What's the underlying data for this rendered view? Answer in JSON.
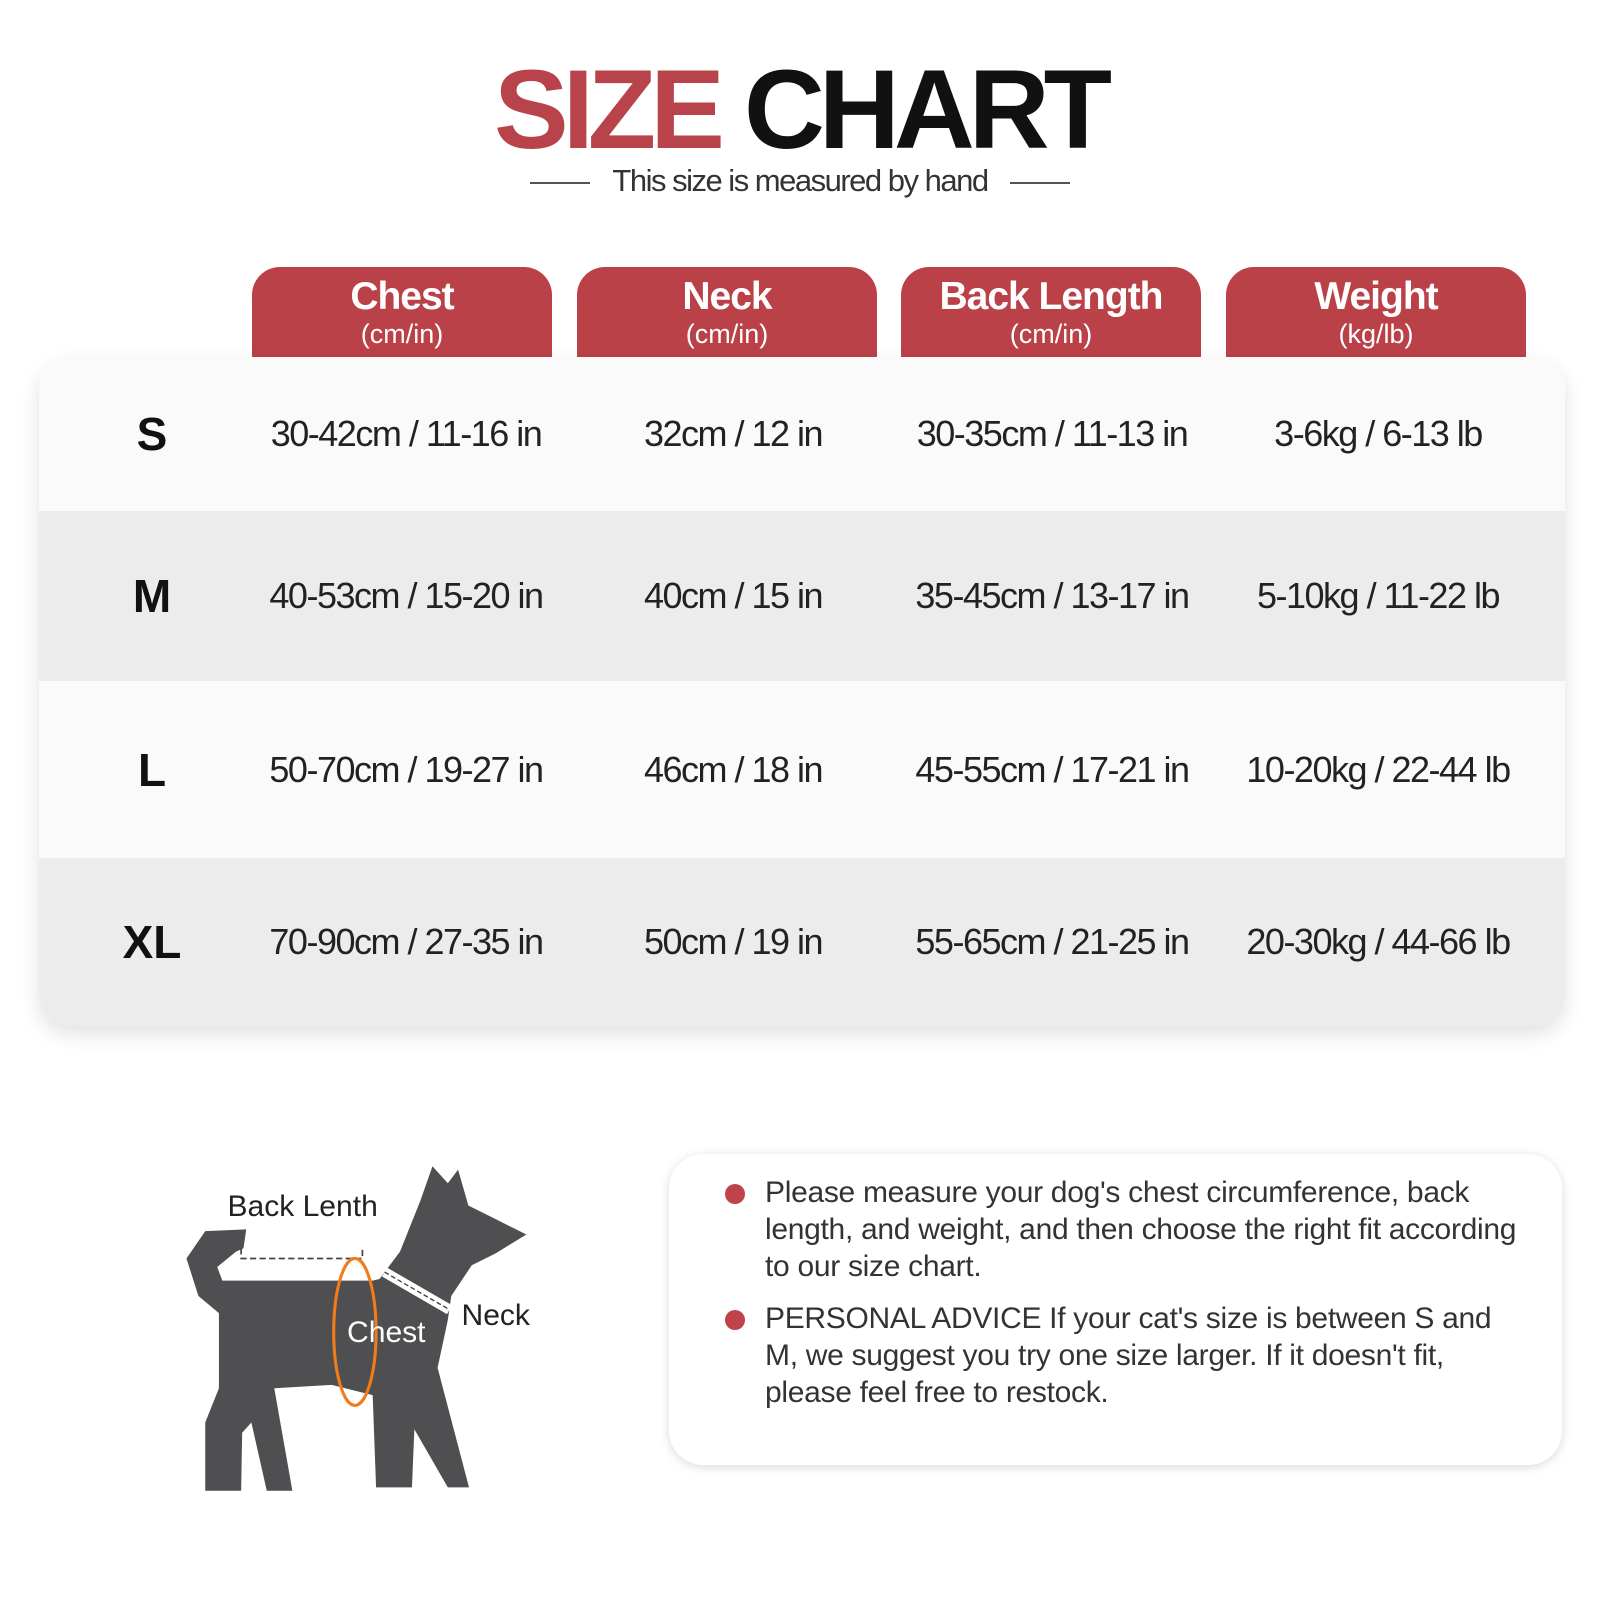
{
  "title": {
    "word1": "SIZE",
    "word2": "CHART",
    "subtitle": "This size is measured by hand"
  },
  "colors": {
    "accent": "#bb4148",
    "row_light": "#fafafa",
    "row_dark": "#ececec",
    "chest_ring": "#f07c1c",
    "dog": "#4f4f51"
  },
  "columns": [
    {
      "label": "Chest",
      "unit": "(cm/in)"
    },
    {
      "label": "Neck",
      "unit": "(cm/in)"
    },
    {
      "label": "Back Length",
      "unit": "(cm/in)"
    },
    {
      "label": "Weight",
      "unit": "(kg/lb)"
    }
  ],
  "rows": [
    {
      "size": "S",
      "chest": "30-42cm / 11-16 in",
      "neck": "32cm / 12 in",
      "back": "30-35cm / 11-13 in",
      "weight": "3-6kg / 6-13 lb"
    },
    {
      "size": "M",
      "chest": "40-53cm / 15-20 in",
      "neck": "40cm / 15 in",
      "back": "35-45cm / 13-17 in",
      "weight": "5-10kg / 11-22 lb"
    },
    {
      "size": "L",
      "chest": "50-70cm / 19-27 in",
      "neck": "46cm / 18 in",
      "back": "45-55cm / 17-21 in",
      "weight": "10-20kg / 22-44 lb"
    },
    {
      "size": "XL",
      "chest": "70-90cm / 27-35 in",
      "neck": "50cm / 19 in",
      "back": "55-65cm / 21-25 in",
      "weight": "20-30kg / 44-66 lb"
    }
  ],
  "diagram": {
    "back_label": "Back Lenth",
    "chest_label": "Chest",
    "neck_label": "Neck"
  },
  "notes": [
    "Please measure your dog's chest circumference, back length, and weight, and then choose the right fit according to our size chart.",
    "PERSONAL ADVICE If your cat's size is between S and M, we suggest you try one size larger. If it doesn't fit, please feel free to restock."
  ]
}
